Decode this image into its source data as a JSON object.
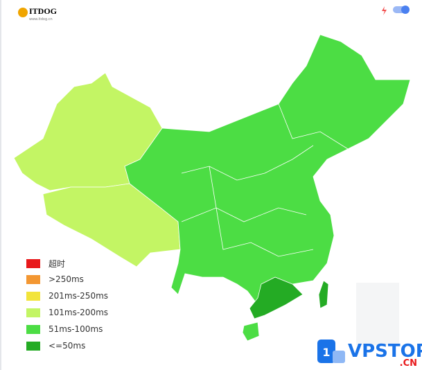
{
  "header": {
    "logo": "ITDOG",
    "logo_sub": "www.itdog.cn"
  },
  "legend": [
    {
      "label": "超时",
      "color": "#e8191b"
    },
    {
      "label": ">250ms",
      "color": "#f39732"
    },
    {
      "label": "201ms-250ms",
      "color": "#f2e43a"
    },
    {
      "label": "101ms-200ms",
      "color": "#c3f564"
    },
    {
      "label": "51ms-100ms",
      "color": "#4cdd44"
    },
    {
      "label": "<=50ms",
      "color": "#24ab24"
    }
  ],
  "watermark": {
    "badge": "1",
    "brand": "VPSTOP",
    "suffix": ".CN"
  }
}
